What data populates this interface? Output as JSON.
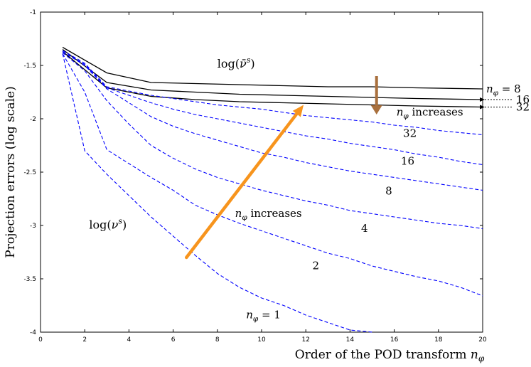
{
  "chart_data": {
    "type": "line",
    "title": "",
    "xlabel": "Order of the POD transform n_φ",
    "ylabel": "Projection errors (log scale)",
    "xlim": [
      0,
      20
    ],
    "ylim": [
      -4,
      -1
    ],
    "xticks": [
      0,
      2,
      4,
      6,
      8,
      10,
      12,
      14,
      16,
      18,
      20
    ],
    "yticks": [
      -4,
      -3.5,
      -3,
      -2.5,
      -2,
      -1.5,
      -1
    ],
    "xtick_labels": [
      "0",
      "2",
      "4",
      "6",
      "8",
      "10",
      "12",
      "14",
      "16",
      "18",
      "20"
    ],
    "ytick_labels": [
      "-4",
      "-3.5",
      "-3",
      "-2.5",
      "-2",
      "-1.5",
      "-1"
    ],
    "grid": false,
    "series": [
      {
        "name": "log(ν̄^s), n_φ = 8",
        "style": "solid",
        "color": "#000000",
        "x": [
          1,
          3,
          5,
          7,
          9,
          11,
          13,
          15,
          17,
          20
        ],
        "y": [
          -1.33,
          -1.57,
          -1.66,
          -1.67,
          -1.68,
          -1.69,
          -1.7,
          -1.7,
          -1.71,
          -1.72
        ]
      },
      {
        "name": "log(ν̄^s), n_φ = 16",
        "style": "solid",
        "color": "#000000",
        "x": [
          1,
          3,
          5,
          7,
          9,
          11,
          13,
          15,
          17,
          20
        ],
        "y": [
          -1.35,
          -1.66,
          -1.73,
          -1.75,
          -1.77,
          -1.78,
          -1.79,
          -1.8,
          -1.81,
          -1.82
        ]
      },
      {
        "name": "log(ν̄^s), n_φ = 32",
        "style": "solid",
        "color": "#000000",
        "x": [
          1,
          3,
          5,
          7,
          9,
          11,
          13,
          15,
          17,
          20
        ],
        "y": [
          -1.37,
          -1.71,
          -1.79,
          -1.82,
          -1.84,
          -1.85,
          -1.86,
          -1.87,
          -1.88,
          -1.89
        ]
      },
      {
        "name": "log(ν^s), n_φ = 1",
        "style": "dashed",
        "color": "#0000ff",
        "x": [
          1,
          2,
          3,
          4,
          5,
          6,
          7,
          8,
          9,
          10,
          11,
          12,
          13,
          14,
          15
        ],
        "y": [
          -1.39,
          -2.3,
          -2.52,
          -2.72,
          -2.92,
          -3.1,
          -3.28,
          -3.45,
          -3.58,
          -3.68,
          -3.75,
          -3.84,
          -3.91,
          -3.98,
          -4.0
        ]
      },
      {
        "name": "log(ν^s), n_φ = 2",
        "style": "dashed",
        "color": "#0000ff",
        "x": [
          1,
          2,
          3,
          4,
          5,
          6,
          7,
          8,
          9,
          10,
          11,
          12,
          13,
          14,
          15,
          16,
          17,
          18,
          19,
          20
        ],
        "y": [
          -1.39,
          -1.75,
          -2.29,
          -2.42,
          -2.55,
          -2.67,
          -2.81,
          -2.9,
          -2.98,
          -3.05,
          -3.12,
          -3.19,
          -3.26,
          -3.31,
          -3.38,
          -3.43,
          -3.48,
          -3.52,
          -3.58,
          -3.66
        ]
      },
      {
        "name": "log(ν^s), n_φ = 4",
        "style": "dashed",
        "color": "#0000ff",
        "x": [
          1,
          2,
          3,
          4,
          5,
          6,
          7,
          8,
          9,
          10,
          11,
          12,
          13,
          14,
          15,
          16,
          17,
          18,
          19,
          20
        ],
        "y": [
          -1.38,
          -1.55,
          -1.83,
          -2.05,
          -2.25,
          -2.37,
          -2.47,
          -2.55,
          -2.61,
          -2.67,
          -2.72,
          -2.77,
          -2.81,
          -2.86,
          -2.89,
          -2.92,
          -2.95,
          -2.98,
          -3.0,
          -3.03
        ]
      },
      {
        "name": "log(ν^s), n_φ = 8",
        "style": "dashed",
        "color": "#0000ff",
        "x": [
          1,
          2,
          3,
          4,
          5,
          6,
          7,
          8,
          9,
          10,
          11,
          12,
          13,
          14,
          15,
          16,
          17,
          18,
          19,
          20
        ],
        "y": [
          -1.37,
          -1.5,
          -1.72,
          -1.85,
          -1.98,
          -2.07,
          -2.14,
          -2.2,
          -2.26,
          -2.32,
          -2.36,
          -2.41,
          -2.45,
          -2.49,
          -2.52,
          -2.55,
          -2.58,
          -2.61,
          -2.64,
          -2.67
        ]
      },
      {
        "name": "log(ν^s), n_φ = 16",
        "style": "dashed",
        "color": "#0000ff",
        "x": [
          1,
          2,
          3,
          4,
          5,
          6,
          7,
          8,
          9,
          10,
          11,
          12,
          13,
          14,
          15,
          16,
          17,
          18,
          19,
          20
        ],
        "y": [
          -1.37,
          -1.49,
          -1.71,
          -1.78,
          -1.85,
          -1.91,
          -1.96,
          -2.0,
          -2.04,
          -2.08,
          -2.12,
          -2.16,
          -2.19,
          -2.23,
          -2.26,
          -2.29,
          -2.33,
          -2.36,
          -2.4,
          -2.43
        ]
      },
      {
        "name": "log(ν^s), n_φ = 32",
        "style": "dashed",
        "color": "#0000ff",
        "x": [
          1,
          2,
          3,
          4,
          5,
          6,
          7,
          8,
          9,
          10,
          11,
          12,
          13,
          14,
          15,
          16,
          17,
          18,
          19,
          20
        ],
        "y": [
          -1.36,
          -1.48,
          -1.7,
          -1.74,
          -1.78,
          -1.81,
          -1.84,
          -1.87,
          -1.89,
          -1.91,
          -1.94,
          -1.97,
          -1.99,
          -2.01,
          -2.03,
          -2.06,
          -2.08,
          -2.11,
          -2.13,
          -2.15
        ]
      }
    ],
    "annotations": {
      "nu_bar_label": {
        "base": "log(",
        "symbol": "ν̄",
        "sup": "s",
        "close": ")",
        "x": 8,
        "y": -1.52
      },
      "nu_label": {
        "base": "log(",
        "symbol": "ν",
        "sup": "s",
        "close": ")",
        "x": 3.9,
        "y": -3.03
      },
      "right_labels": [
        {
          "prefix": "n",
          "sub": "φ",
          "suffix": " = 8",
          "y": -1.72
        },
        {
          "prefix": "",
          "sub": "",
          "suffix": "16",
          "y": -1.82
        },
        {
          "prefix": "",
          "sub": "",
          "suffix": "32",
          "y": -1.89
        }
      ],
      "increases_top": {
        "prefix": "n",
        "sub": "φ",
        "suffix": " increases",
        "x": 16.1,
        "y": -1.97
      },
      "increases_mid": {
        "prefix": "n",
        "sub": "φ",
        "suffix": " increases",
        "x": 8.8,
        "y": -2.92
      },
      "curve_labels": [
        {
          "text": "32",
          "x": 16.4,
          "y": -2.17
        },
        {
          "text": "16",
          "x": 16.3,
          "y": -2.43
        },
        {
          "text": "8",
          "x": 15.6,
          "y": -2.71
        },
        {
          "text": "4",
          "x": 14.5,
          "y": -3.06
        },
        {
          "text": "2",
          "x": 12.3,
          "y": -3.41
        }
      ],
      "n1_label": {
        "prefix": "n",
        "sub": "φ",
        "suffix": " = 1",
        "x": 9.3,
        "y": -3.87
      },
      "brown_arrow": {
        "x": 15.2,
        "y_from": -1.6,
        "y_to": -1.96,
        "color": "#a9703d"
      },
      "orange_arrow": {
        "x_from": 6.6,
        "y_from": -3.3,
        "x_to": 11.9,
        "y_to": -1.87,
        "color": "#f7941d"
      }
    }
  }
}
